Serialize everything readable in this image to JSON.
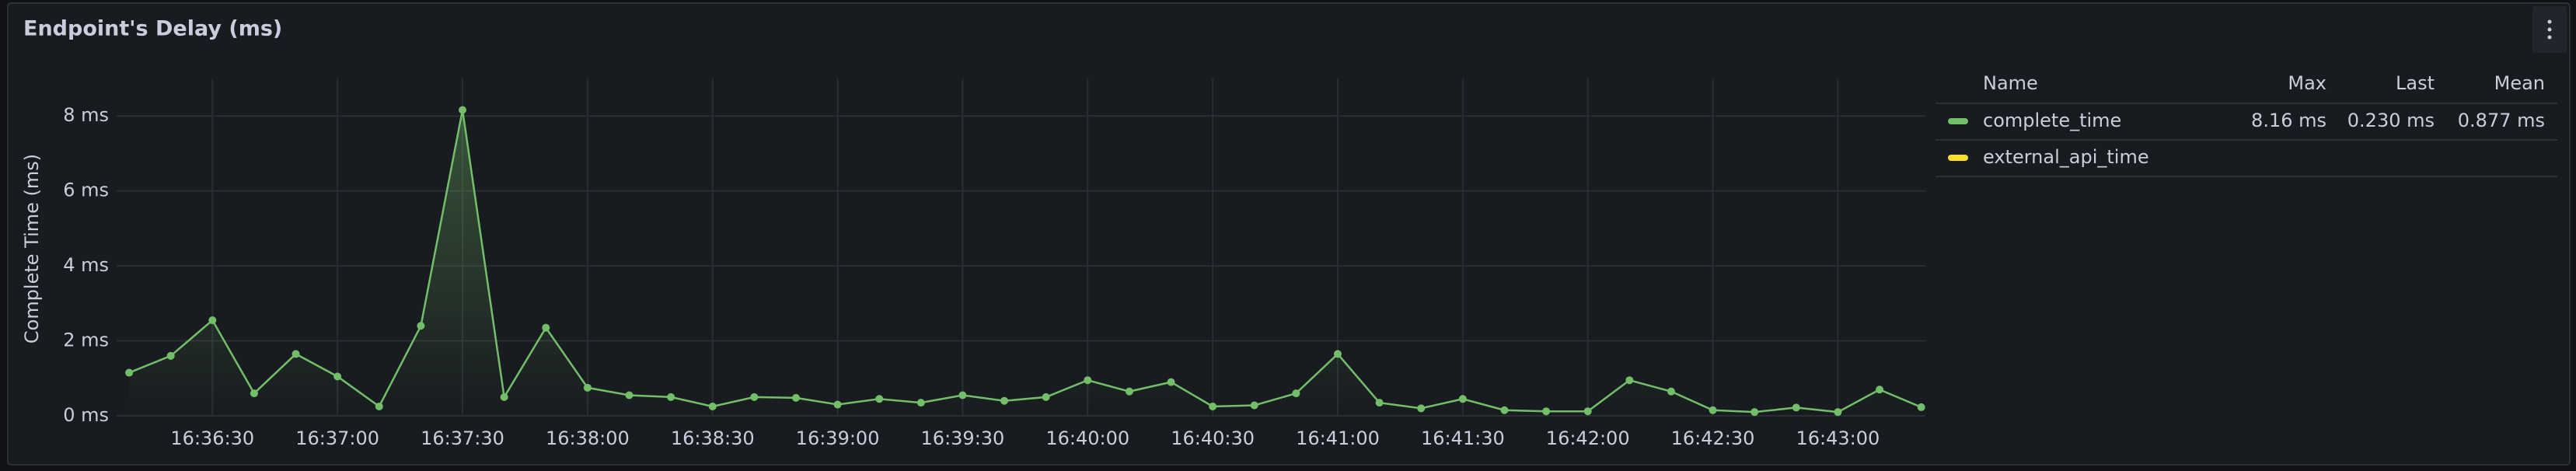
{
  "chart_data": {
    "type": "line",
    "title": "Endpoint's Delay (ms)",
    "y_label": "Complete Time (ms)",
    "x": [
      "16:36:10",
      "16:36:20",
      "16:36:30",
      "16:36:40",
      "16:36:50",
      "16:37:00",
      "16:37:10",
      "16:37:20",
      "16:37:30",
      "16:37:40",
      "16:37:50",
      "16:38:00",
      "16:38:10",
      "16:38:20",
      "16:38:30",
      "16:38:40",
      "16:38:50",
      "16:39:00",
      "16:39:10",
      "16:39:20",
      "16:39:30",
      "16:39:40",
      "16:39:50",
      "16:40:00",
      "16:40:10",
      "16:40:20",
      "16:40:30",
      "16:40:40",
      "16:40:50",
      "16:41:00",
      "16:41:10",
      "16:41:20",
      "16:41:30",
      "16:41:40",
      "16:41:50",
      "16:42:00",
      "16:42:10",
      "16:42:20",
      "16:42:30",
      "16:42:40",
      "16:42:50",
      "16:43:00",
      "16:43:10",
      "16:43:20"
    ],
    "series": [
      {
        "name": "complete_time",
        "color": "#73bf69",
        "legend_values": [
          "8.16 ms",
          "0.230 ms",
          "0.877 ms"
        ],
        "values": [
          1.15,
          1.6,
          2.55,
          0.6,
          1.65,
          1.05,
          0.25,
          2.4,
          8.16,
          0.5,
          2.35,
          0.75,
          0.55,
          0.5,
          0.25,
          0.5,
          0.48,
          0.3,
          0.45,
          0.35,
          0.55,
          0.4,
          0.5,
          0.95,
          0.65,
          0.9,
          0.25,
          0.28,
          0.6,
          1.65,
          0.35,
          0.2,
          0.45,
          0.15,
          0.12,
          0.12,
          0.95,
          0.65,
          0.15,
          0.1,
          0.22,
          0.1,
          0.7,
          0.23
        ]
      },
      {
        "name": "external_api_time",
        "color": "#fade2a",
        "values": [
          null,
          null,
          null,
          null,
          null,
          null,
          null,
          null,
          null,
          null,
          null,
          null,
          null,
          null,
          null,
          null,
          null,
          null,
          null,
          null,
          null,
          null,
          null,
          null,
          null,
          null,
          null,
          null,
          null,
          null,
          null,
          null,
          null,
          null,
          null,
          null,
          null,
          null,
          null,
          null,
          null,
          null,
          null,
          null
        ]
      }
    ],
    "legend_columns": [
      "Name",
      "Max",
      "Last",
      "Mean"
    ],
    "xlim": [
      "16:36:07",
      "16:43:21"
    ],
    "xticks": [
      "16:36:30",
      "16:37:00",
      "16:37:30",
      "16:38:00",
      "16:38:30",
      "16:39:00",
      "16:39:30",
      "16:40:00",
      "16:40:30",
      "16:41:00",
      "16:41:30",
      "16:42:00",
      "16:42:30",
      "16:43:00"
    ],
    "ylim": [
      0,
      9
    ],
    "yticks": [
      {
        "value": 0,
        "label": "0 ms"
      },
      {
        "value": 2,
        "label": "2 ms"
      },
      {
        "value": 4,
        "label": "4 ms"
      },
      {
        "value": 6,
        "label": "6 ms"
      },
      {
        "value": 8,
        "label": "8 ms"
      }
    ],
    "grid": true
  }
}
